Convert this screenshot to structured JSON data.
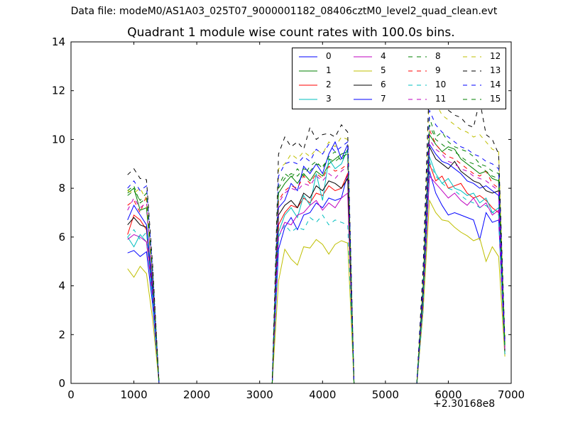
{
  "suptitle": "Data file: modeM0/AS1A03_025T07_9000001182_08406cztM0_level2_quad_clean.evt",
  "chart_data": {
    "type": "line",
    "title": "Quadrant 1 module wise count rates with 100.0s bins.",
    "xlabel": "",
    "ylabel": "",
    "x_offset_label": "+2.30168e8",
    "xlim": [
      0,
      7000
    ],
    "ylim": [
      0,
      14
    ],
    "x_ticks": [
      0,
      1000,
      2000,
      3000,
      4000,
      5000,
      6000,
      7000
    ],
    "y_ticks": [
      0,
      2,
      4,
      6,
      8,
      10,
      12,
      14
    ],
    "grid": false,
    "legend_position": "top-right",
    "x": [
      900,
      1000,
      1100,
      1200,
      1300,
      1400,
      1500,
      1600,
      1700,
      1800,
      1900,
      2000,
      2100,
      2200,
      2300,
      2400,
      2500,
      2600,
      2700,
      2800,
      2900,
      3000,
      3100,
      3200,
      3300,
      3400,
      3500,
      3600,
      3700,
      3800,
      3900,
      4000,
      4100,
      4200,
      4300,
      4400,
      4500,
      4600,
      4700,
      4800,
      4900,
      5000,
      5100,
      5200,
      5300,
      5400,
      5500,
      5600,
      5700,
      5800,
      5900,
      6000,
      6100,
      6200,
      6300,
      6400,
      6500,
      6600,
      6700,
      6800,
      6900
    ],
    "series": [
      {
        "name": "0",
        "color": "#0000ff",
        "style": "solid",
        "values": [
          5.35,
          5.45,
          5.2,
          5.4,
          3.2,
          0,
          0,
          0,
          0,
          0,
          0,
          0,
          0,
          0,
          0,
          0,
          0,
          0,
          0,
          0,
          0,
          0,
          0,
          0,
          5.5,
          6.4,
          6.8,
          6.3,
          6.9,
          7.0,
          7.4,
          7.2,
          7.6,
          7.5,
          7.6,
          8.6,
          0,
          0,
          0,
          0,
          0,
          0,
          0,
          0,
          0,
          0,
          0,
          3.0,
          8.7,
          7.8,
          7.3,
          6.9,
          7.0,
          6.9,
          6.8,
          6.7,
          5.9,
          7.0,
          6.6,
          6.7,
          1.2
        ]
      },
      {
        "name": "1",
        "color": "#008000",
        "style": "solid",
        "values": [
          7.8,
          8.0,
          7.1,
          7.2,
          4.3,
          0,
          0,
          0,
          0,
          0,
          0,
          0,
          0,
          0,
          0,
          0,
          0,
          0,
          0,
          0,
          0,
          0,
          0,
          0,
          7.8,
          8.2,
          8.5,
          8.2,
          8.6,
          8.3,
          8.7,
          8.5,
          9.0,
          9.2,
          9.4,
          9.5,
          0,
          0,
          0,
          0,
          0,
          0,
          0,
          0,
          0,
          0,
          0,
          4.0,
          10.2,
          9.8,
          9.5,
          9.7,
          9.6,
          9.2,
          9.0,
          8.8,
          8.6,
          8.7,
          8.4,
          8.3,
          1.5
        ]
      },
      {
        "name": "2",
        "color": "#ff0000",
        "style": "solid",
        "values": [
          6.1,
          6.9,
          6.7,
          6.3,
          3.7,
          0,
          0,
          0,
          0,
          0,
          0,
          0,
          0,
          0,
          0,
          0,
          0,
          0,
          0,
          0,
          0,
          0,
          0,
          0,
          6.5,
          7.0,
          7.3,
          7.2,
          7.6,
          7.4,
          7.8,
          7.7,
          8.1,
          7.9,
          8.0,
          8.6,
          0,
          0,
          0,
          0,
          0,
          0,
          0,
          0,
          0,
          0,
          0,
          3.5,
          9.0,
          8.3,
          8.5,
          8.0,
          8.1,
          8.2,
          7.8,
          7.6,
          7.7,
          7.5,
          7.2,
          7.0,
          1.3
        ]
      },
      {
        "name": "3",
        "color": "#00bfbf",
        "style": "solid",
        "values": [
          6.0,
          5.6,
          6.1,
          5.8,
          3.5,
          0,
          0,
          0,
          0,
          0,
          0,
          0,
          0,
          0,
          0,
          0,
          0,
          0,
          0,
          0,
          0,
          0,
          0,
          0,
          6.2,
          6.9,
          7.2,
          6.8,
          7.7,
          7.3,
          8.6,
          7.5,
          9.2,
          8.8,
          9.0,
          9.6,
          0,
          0,
          0,
          0,
          0,
          0,
          0,
          0,
          0,
          0,
          0,
          3.4,
          9.3,
          8.6,
          8.2,
          8.4,
          8.0,
          7.9,
          7.7,
          7.8,
          7.4,
          7.6,
          7.0,
          7.2,
          1.2
        ]
      },
      {
        "name": "4",
        "color": "#bf00bf",
        "style": "solid",
        "values": [
          5.9,
          6.1,
          6.0,
          5.8,
          3.6,
          0,
          0,
          0,
          0,
          0,
          0,
          0,
          0,
          0,
          0,
          0,
          0,
          0,
          0,
          0,
          0,
          0,
          0,
          0,
          6.0,
          6.6,
          6.5,
          6.9,
          7.0,
          7.3,
          7.5,
          7.1,
          7.4,
          7.2,
          7.6,
          7.8,
          0,
          0,
          0,
          0,
          0,
          0,
          0,
          0,
          0,
          0,
          0,
          3.3,
          8.5,
          8.2,
          7.9,
          7.6,
          7.8,
          7.5,
          7.3,
          7.6,
          7.2,
          7.4,
          6.9,
          7.1,
          1.2
        ]
      },
      {
        "name": "5",
        "color": "#bfbf00",
        "style": "solid",
        "values": [
          4.7,
          4.35,
          4.8,
          4.5,
          2.6,
          0,
          0,
          0,
          0,
          0,
          0,
          0,
          0,
          0,
          0,
          0,
          0,
          0,
          0,
          0,
          0,
          0,
          0,
          0,
          4.2,
          5.5,
          5.1,
          4.85,
          5.6,
          5.55,
          5.9,
          5.7,
          5.3,
          5.7,
          5.85,
          5.75,
          0,
          0,
          0,
          0,
          0,
          0,
          0,
          0,
          0,
          0,
          0,
          3.0,
          7.5,
          7.0,
          6.7,
          6.65,
          6.4,
          6.2,
          6.05,
          5.85,
          5.95,
          5.0,
          5.6,
          5.2,
          1.1
        ]
      },
      {
        "name": "6",
        "color": "#000000",
        "style": "solid",
        "values": [
          6.5,
          6.8,
          6.5,
          6.4,
          3.8,
          0,
          0,
          0,
          0,
          0,
          0,
          0,
          0,
          0,
          0,
          0,
          0,
          0,
          0,
          0,
          0,
          0,
          0,
          0,
          6.9,
          7.3,
          7.5,
          7.2,
          7.8,
          7.6,
          8.1,
          7.9,
          8.3,
          8.2,
          8.0,
          8.4,
          0,
          0,
          0,
          0,
          0,
          0,
          0,
          0,
          0,
          0,
          0,
          3.6,
          9.7,
          9.2,
          9.0,
          8.8,
          9.1,
          8.7,
          8.5,
          8.3,
          8.2,
          7.9,
          7.8,
          7.9,
          1.3
        ]
      },
      {
        "name": "7",
        "color": "#0000ff",
        "style": "solid",
        "values": [
          6.7,
          7.3,
          6.9,
          6.5,
          3.9,
          0,
          0,
          0,
          0,
          0,
          0,
          0,
          0,
          0,
          0,
          0,
          0,
          0,
          0,
          0,
          0,
          0,
          0,
          0,
          7.2,
          7.5,
          8.2,
          7.9,
          8.9,
          8.6,
          9.0,
          8.6,
          9.4,
          9.9,
          9.2,
          9.8,
          0,
          0,
          0,
          0,
          0,
          0,
          0,
          0,
          0,
          0,
          0,
          3.8,
          9.8,
          9.4,
          9.1,
          9.0,
          8.8,
          8.6,
          8.3,
          8.2,
          8.0,
          8.1,
          7.9,
          7.7,
          1.4
        ]
      },
      {
        "name": "8",
        "color": "#008000",
        "style": "dashed",
        "values": [
          7.9,
          8.1,
          7.4,
          7.6,
          4.5,
          0,
          0,
          0,
          0,
          0,
          0,
          0,
          0,
          0,
          0,
          0,
          0,
          0,
          0,
          0,
          0,
          0,
          0,
          0,
          8.1,
          8.6,
          8.4,
          8.8,
          8.5,
          8.9,
          9.1,
          8.8,
          9.3,
          9.5,
          9.1,
          9.6,
          0,
          0,
          0,
          0,
          0,
          0,
          0,
          0,
          0,
          0,
          0,
          4.2,
          10.9,
          10.1,
          10.3,
          9.9,
          9.7,
          9.6,
          9.5,
          9.3,
          9.0,
          8.9,
          8.7,
          8.6,
          1.6
        ]
      },
      {
        "name": "9",
        "color": "#ff0000",
        "style": "dashed",
        "values": [
          7.3,
          7.5,
          7.0,
          7.7,
          4.2,
          0,
          0,
          0,
          0,
          0,
          0,
          0,
          0,
          0,
          0,
          0,
          0,
          0,
          0,
          0,
          0,
          0,
          0,
          0,
          7.5,
          7.9,
          8.1,
          8.0,
          8.5,
          8.2,
          8.6,
          8.4,
          8.9,
          8.7,
          8.8,
          9.0,
          0,
          0,
          0,
          0,
          0,
          0,
          0,
          0,
          0,
          0,
          0,
          3.9,
          10.4,
          9.8,
          9.5,
          9.3,
          9.2,
          9.0,
          8.8,
          8.6,
          8.5,
          8.7,
          8.2,
          8.0,
          1.4
        ]
      },
      {
        "name": "10",
        "color": "#00bfbf",
        "style": "dashed",
        "values": [
          6.0,
          6.3,
          5.9,
          6.2,
          3.5,
          0,
          0,
          0,
          0,
          0,
          0,
          0,
          0,
          0,
          0,
          0,
          0,
          0,
          0,
          0,
          0,
          0,
          0,
          0,
          6.0,
          6.5,
          6.2,
          6.4,
          6.3,
          6.8,
          6.6,
          6.9,
          6.5,
          6.7,
          6.6,
          6.5,
          0,
          0,
          0,
          0,
          0,
          0,
          0,
          0,
          0,
          0,
          0,
          3.2,
          9.1,
          8.5,
          8.2,
          8.0,
          7.9,
          7.7,
          7.5,
          7.4,
          7.2,
          7.3,
          7.0,
          6.9,
          1.2
        ]
      },
      {
        "name": "11",
        "color": "#bf00bf",
        "style": "dashed",
        "values": [
          7.1,
          7.6,
          7.2,
          7.4,
          4.1,
          0,
          0,
          0,
          0,
          0,
          0,
          0,
          0,
          0,
          0,
          0,
          0,
          0,
          0,
          0,
          0,
          0,
          0,
          0,
          7.4,
          7.8,
          8.0,
          7.9,
          8.2,
          8.1,
          8.5,
          8.3,
          8.6,
          8.4,
          8.7,
          8.9,
          0,
          0,
          0,
          0,
          0,
          0,
          0,
          0,
          0,
          0,
          0,
          3.8,
          10.0,
          9.6,
          9.4,
          9.1,
          9.0,
          8.8,
          8.7,
          8.5,
          8.4,
          8.3,
          8.1,
          7.9,
          1.4
        ]
      },
      {
        "name": "12",
        "color": "#bfbf00",
        "style": "dashed",
        "values": [
          7.9,
          7.8,
          8.0,
          7.5,
          4.4,
          0,
          0,
          0,
          0,
          0,
          0,
          0,
          0,
          0,
          0,
          0,
          0,
          0,
          0,
          0,
          0,
          0,
          0,
          0,
          8.8,
          9.0,
          9.4,
          9.2,
          9.5,
          9.3,
          9.6,
          9.4,
          9.9,
          9.7,
          10.1,
          10.0,
          0,
          0,
          0,
          0,
          0,
          0,
          0,
          0,
          0,
          0,
          0,
          4.5,
          12.3,
          11.5,
          11.0,
          10.8,
          10.6,
          10.4,
          10.3,
          10.1,
          10.2,
          9.9,
          9.6,
          9.5,
          1.7
        ]
      },
      {
        "name": "13",
        "color": "#000000",
        "style": "dashed",
        "values": [
          8.55,
          8.8,
          8.4,
          8.35,
          4.8,
          0,
          0,
          0,
          0,
          0,
          0,
          0,
          0,
          0,
          0,
          0,
          0,
          0,
          0,
          0,
          0,
          0,
          0,
          0,
          9.4,
          10.1,
          9.7,
          9.9,
          9.6,
          10.5,
          10.0,
          10.2,
          10.25,
          10.1,
          10.6,
          10.3,
          0,
          0,
          0,
          0,
          0,
          0,
          0,
          0,
          0,
          0,
          0,
          4.8,
          12.6,
          12.0,
          11.5,
          11.2,
          11.0,
          10.9,
          10.6,
          10.5,
          11.6,
          10.2,
          10.0,
          9.4,
          1.8
        ]
      },
      {
        "name": "14",
        "color": "#0000ff",
        "style": "dashed",
        "values": [
          8.0,
          8.3,
          7.9,
          8.1,
          4.6,
          0,
          0,
          0,
          0,
          0,
          0,
          0,
          0,
          0,
          0,
          0,
          0,
          0,
          0,
          0,
          0,
          0,
          0,
          0,
          8.5,
          9.0,
          9.1,
          9.0,
          9.3,
          9.1,
          9.6,
          9.4,
          9.8,
          9.5,
          9.7,
          9.9,
          0,
          0,
          0,
          0,
          0,
          0,
          0,
          0,
          0,
          0,
          0,
          4.3,
          11.2,
          10.6,
          10.3,
          10.1,
          9.9,
          9.7,
          9.6,
          9.4,
          9.3,
          9.1,
          9.0,
          8.8,
          1.6
        ]
      },
      {
        "name": "15",
        "color": "#008000",
        "style": "dashed",
        "values": [
          7.7,
          7.9,
          7.5,
          7.8,
          4.4,
          0,
          0,
          0,
          0,
          0,
          0,
          0,
          0,
          0,
          0,
          0,
          0,
          0,
          0,
          0,
          0,
          0,
          0,
          0,
          8.0,
          8.4,
          8.6,
          8.5,
          8.8,
          8.7,
          9.0,
          8.9,
          9.2,
          9.1,
          9.3,
          9.4,
          0,
          0,
          0,
          0,
          0,
          0,
          0,
          0,
          0,
          0,
          0,
          4.0,
          10.6,
          10.0,
          9.8,
          9.6,
          9.5,
          9.3,
          9.1,
          9.0,
          8.9,
          8.7,
          8.5,
          8.4,
          1.5
        ]
      }
    ]
  }
}
